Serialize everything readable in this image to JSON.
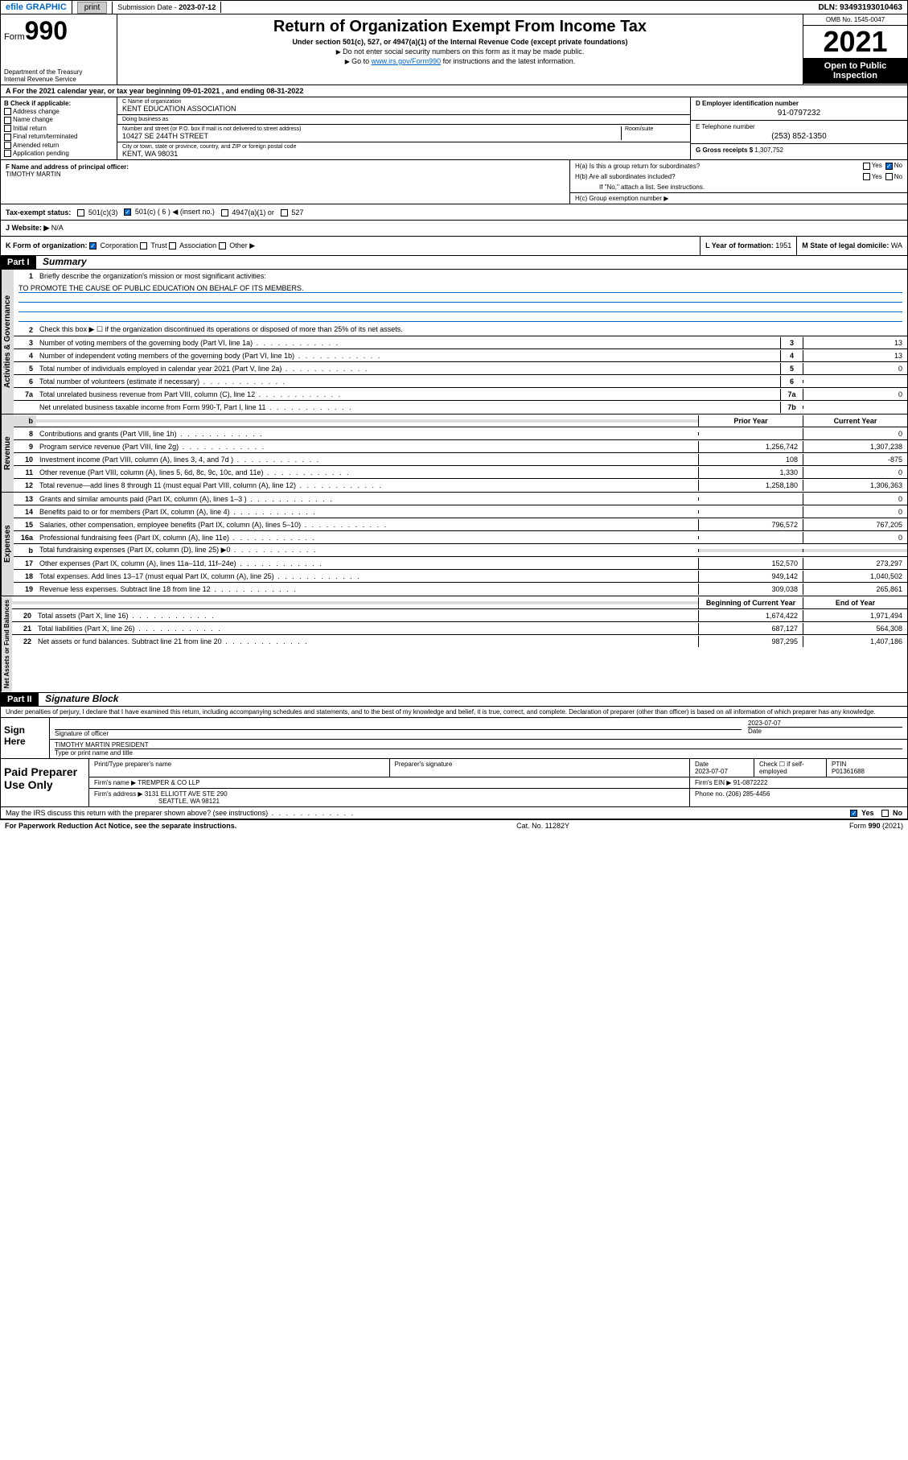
{
  "topbar": {
    "efile": "efile GRAPHIC",
    "print": "print",
    "submission_label": "Submission Date - ",
    "submission_date": "2023-07-12",
    "dln_label": "DLN: ",
    "dln": "93493193010463"
  },
  "header": {
    "form_prefix": "Form",
    "form_num": "990",
    "dept": "Department of the Treasury",
    "irs": "Internal Revenue Service",
    "title": "Return of Organization Exempt From Income Tax",
    "subtitle": "Under section 501(c), 527, or 4947(a)(1) of the Internal Revenue Code (except private foundations)",
    "note1": "Do not enter social security numbers on this form as it may be made public.",
    "note2_pre": "Go to ",
    "note2_link": "www.irs.gov/Form990",
    "note2_post": " for instructions and the latest information.",
    "omb": "OMB No. 1545-0047",
    "year": "2021",
    "open": "Open to Public Inspection"
  },
  "row_a": {
    "text": "A For the 2021 calendar year, or tax year beginning 09-01-2021  , and ending 08-31-2022"
  },
  "col_b": {
    "header": "B Check if applicable:",
    "opts": [
      "Address change",
      "Name change",
      "Initial return",
      "Final return/terminated",
      "Amended return",
      "Application pending"
    ]
  },
  "col_c": {
    "name_label": "C Name of organization",
    "name": "KENT EDUCATION ASSOCIATION",
    "dba_label": "Doing business as",
    "dba": "",
    "addr_label": "Number and street (or P.O. box if mail is not delivered to street address)",
    "room_label": "Room/suite",
    "addr": "10427 SE 244TH STREET",
    "city_label": "City or town, state or province, country, and ZIP or foreign postal code",
    "city": "KENT, WA  98031"
  },
  "col_d": {
    "ein_label": "D Employer identification number",
    "ein": "91-0797232",
    "phone_label": "E Telephone number",
    "phone": "(253) 852-1350",
    "gross_label": "G Gross receipts $ ",
    "gross": "1,307,752"
  },
  "row_f": {
    "label": "F Name and address of principal officer:",
    "name": "TIMOTHY MARTIN"
  },
  "row_h": {
    "ha": "H(a)  Is this a group return for subordinates?",
    "hb": "H(b)  Are all subordinates included?",
    "hb_note": "If \"No,\" attach a list. See instructions.",
    "hc": "H(c)  Group exemption number ▶",
    "yes": "Yes",
    "no": "No"
  },
  "row_i": {
    "label": "Tax-exempt status:",
    "opt1": "501(c)(3)",
    "opt2a": "501(c) ( 6 ) ◀ (insert no.)",
    "opt3": "4947(a)(1) or",
    "opt4": "527"
  },
  "row_j": {
    "label": "J   Website: ▶",
    "val": "N/A"
  },
  "row_k": {
    "label": "K Form of organization:",
    "opts": [
      "Corporation",
      "Trust",
      "Association",
      "Other ▶"
    ],
    "l_label": "L Year of formation: ",
    "l_val": "1951",
    "m_label": "M State of legal domicile: ",
    "m_val": "WA"
  },
  "part1": {
    "hdr": "Part I",
    "title": "Summary",
    "vtab1": "Activities & Governance",
    "vtab2": "Revenue",
    "vtab3": "Expenses",
    "vtab4": "Net Assets or Fund Balances",
    "l1_label": "Briefly describe the organization's mission or most significant activities:",
    "l1_text": "TO PROMOTE THE CAUSE OF PUBLIC EDUCATION ON BEHALF OF ITS MEMBERS.",
    "l2": "Check this box ▶ ☐  if the organization discontinued its operations or disposed of more than 25% of its net assets.",
    "lines_gov": [
      {
        "n": "3",
        "t": "Number of voting members of the governing body (Part VI, line 1a)",
        "box": "3",
        "v": "13"
      },
      {
        "n": "4",
        "t": "Number of independent voting members of the governing body (Part VI, line 1b)",
        "box": "4",
        "v": "13"
      },
      {
        "n": "5",
        "t": "Total number of individuals employed in calendar year 2021 (Part V, line 2a)",
        "box": "5",
        "v": "0"
      },
      {
        "n": "6",
        "t": "Total number of volunteers (estimate if necessary)",
        "box": "6",
        "v": ""
      },
      {
        "n": "7a",
        "t": "Total unrelated business revenue from Part VIII, column (C), line 12",
        "box": "7a",
        "v": "0"
      },
      {
        "n": "",
        "t": "Net unrelated business taxable income from Form 990-T, Part I, line 11",
        "box": "7b",
        "v": ""
      }
    ],
    "col_prior": "Prior Year",
    "col_current": "Current Year",
    "lines_rev": [
      {
        "n": "8",
        "t": "Contributions and grants (Part VIII, line 1h)",
        "p": "",
        "c": "0"
      },
      {
        "n": "9",
        "t": "Program service revenue (Part VIII, line 2g)",
        "p": "1,256,742",
        "c": "1,307,238"
      },
      {
        "n": "10",
        "t": "Investment income (Part VIII, column (A), lines 3, 4, and 7d )",
        "p": "108",
        "c": "-875"
      },
      {
        "n": "11",
        "t": "Other revenue (Part VIII, column (A), lines 5, 6d, 8c, 9c, 10c, and 11e)",
        "p": "1,330",
        "c": "0"
      },
      {
        "n": "12",
        "t": "Total revenue—add lines 8 through 11 (must equal Part VIII, column (A), line 12)",
        "p": "1,258,180",
        "c": "1,306,363"
      }
    ],
    "lines_exp": [
      {
        "n": "13",
        "t": "Grants and similar amounts paid (Part IX, column (A), lines 1–3 )",
        "p": "",
        "c": "0"
      },
      {
        "n": "14",
        "t": "Benefits paid to or for members (Part IX, column (A), line 4)",
        "p": "",
        "c": "0"
      },
      {
        "n": "15",
        "t": "Salaries, other compensation, employee benefits (Part IX, column (A), lines 5–10)",
        "p": "796,572",
        "c": "767,205"
      },
      {
        "n": "16a",
        "t": "Professional fundraising fees (Part IX, column (A), line 11e)",
        "p": "",
        "c": "0"
      },
      {
        "n": "b",
        "t": "Total fundraising expenses (Part IX, column (D), line 25) ▶0",
        "p": "",
        "c": "",
        "shade": true
      },
      {
        "n": "17",
        "t": "Other expenses (Part IX, column (A), lines 11a–11d, 11f–24e)",
        "p": "152,570",
        "c": "273,297"
      },
      {
        "n": "18",
        "t": "Total expenses. Add lines 13–17 (must equal Part IX, column (A), line 25)",
        "p": "949,142",
        "c": "1,040,502"
      },
      {
        "n": "19",
        "t": "Revenue less expenses. Subtract line 18 from line 12",
        "p": "309,038",
        "c": "265,861"
      }
    ],
    "col_begin": "Beginning of Current Year",
    "col_end": "End of Year",
    "lines_net": [
      {
        "n": "20",
        "t": "Total assets (Part X, line 16)",
        "p": "1,674,422",
        "c": "1,971,494"
      },
      {
        "n": "21",
        "t": "Total liabilities (Part X, line 26)",
        "p": "687,127",
        "c": "564,308"
      },
      {
        "n": "22",
        "t": "Net assets or fund balances. Subtract line 21 from line 20",
        "p": "987,295",
        "c": "1,407,186"
      }
    ]
  },
  "part2": {
    "hdr": "Part II",
    "title": "Signature Block",
    "decl": "Under penalties of perjury, I declare that I have examined this return, including accompanying schedules and statements, and to the best of my knowledge and belief, it is true, correct, and complete. Declaration of preparer (other than officer) is based on all information of which preparer has any knowledge.",
    "sign_here": "Sign Here",
    "sig_officer": "Signature of officer",
    "sig_date": "2023-07-07",
    "date_label": "Date",
    "officer_name": "TIMOTHY MARTIN  PRESIDENT",
    "officer_label": "Type or print name and title",
    "paid_label": "Paid Preparer Use Only",
    "prep_name_label": "Print/Type preparer's name",
    "prep_sig_label": "Preparer's signature",
    "prep_date_label": "Date",
    "prep_date": "2023-07-07",
    "check_if": "Check ☐ if self-employed",
    "ptin_label": "PTIN",
    "ptin": "P01361688",
    "firm_name_label": "Firm's name   ▶ ",
    "firm_name": "TREMPER & CO LLP",
    "firm_ein_label": "Firm's EIN ▶ ",
    "firm_ein": "91-0872222",
    "firm_addr_label": "Firm's address ▶ ",
    "firm_addr1": "3131 ELLIOTT AVE STE 290",
    "firm_addr2": "SEATTLE, WA  98121",
    "firm_phone_label": "Phone no. ",
    "firm_phone": "(206) 285-4456",
    "discuss": "May the IRS discuss this return with the preparer shown above? (see instructions)",
    "yes": "Yes",
    "no": "No"
  },
  "footer": {
    "left": "For Paperwork Reduction Act Notice, see the separate instructions.",
    "mid": "Cat. No. 11282Y",
    "right": "Form 990 (2021)"
  }
}
